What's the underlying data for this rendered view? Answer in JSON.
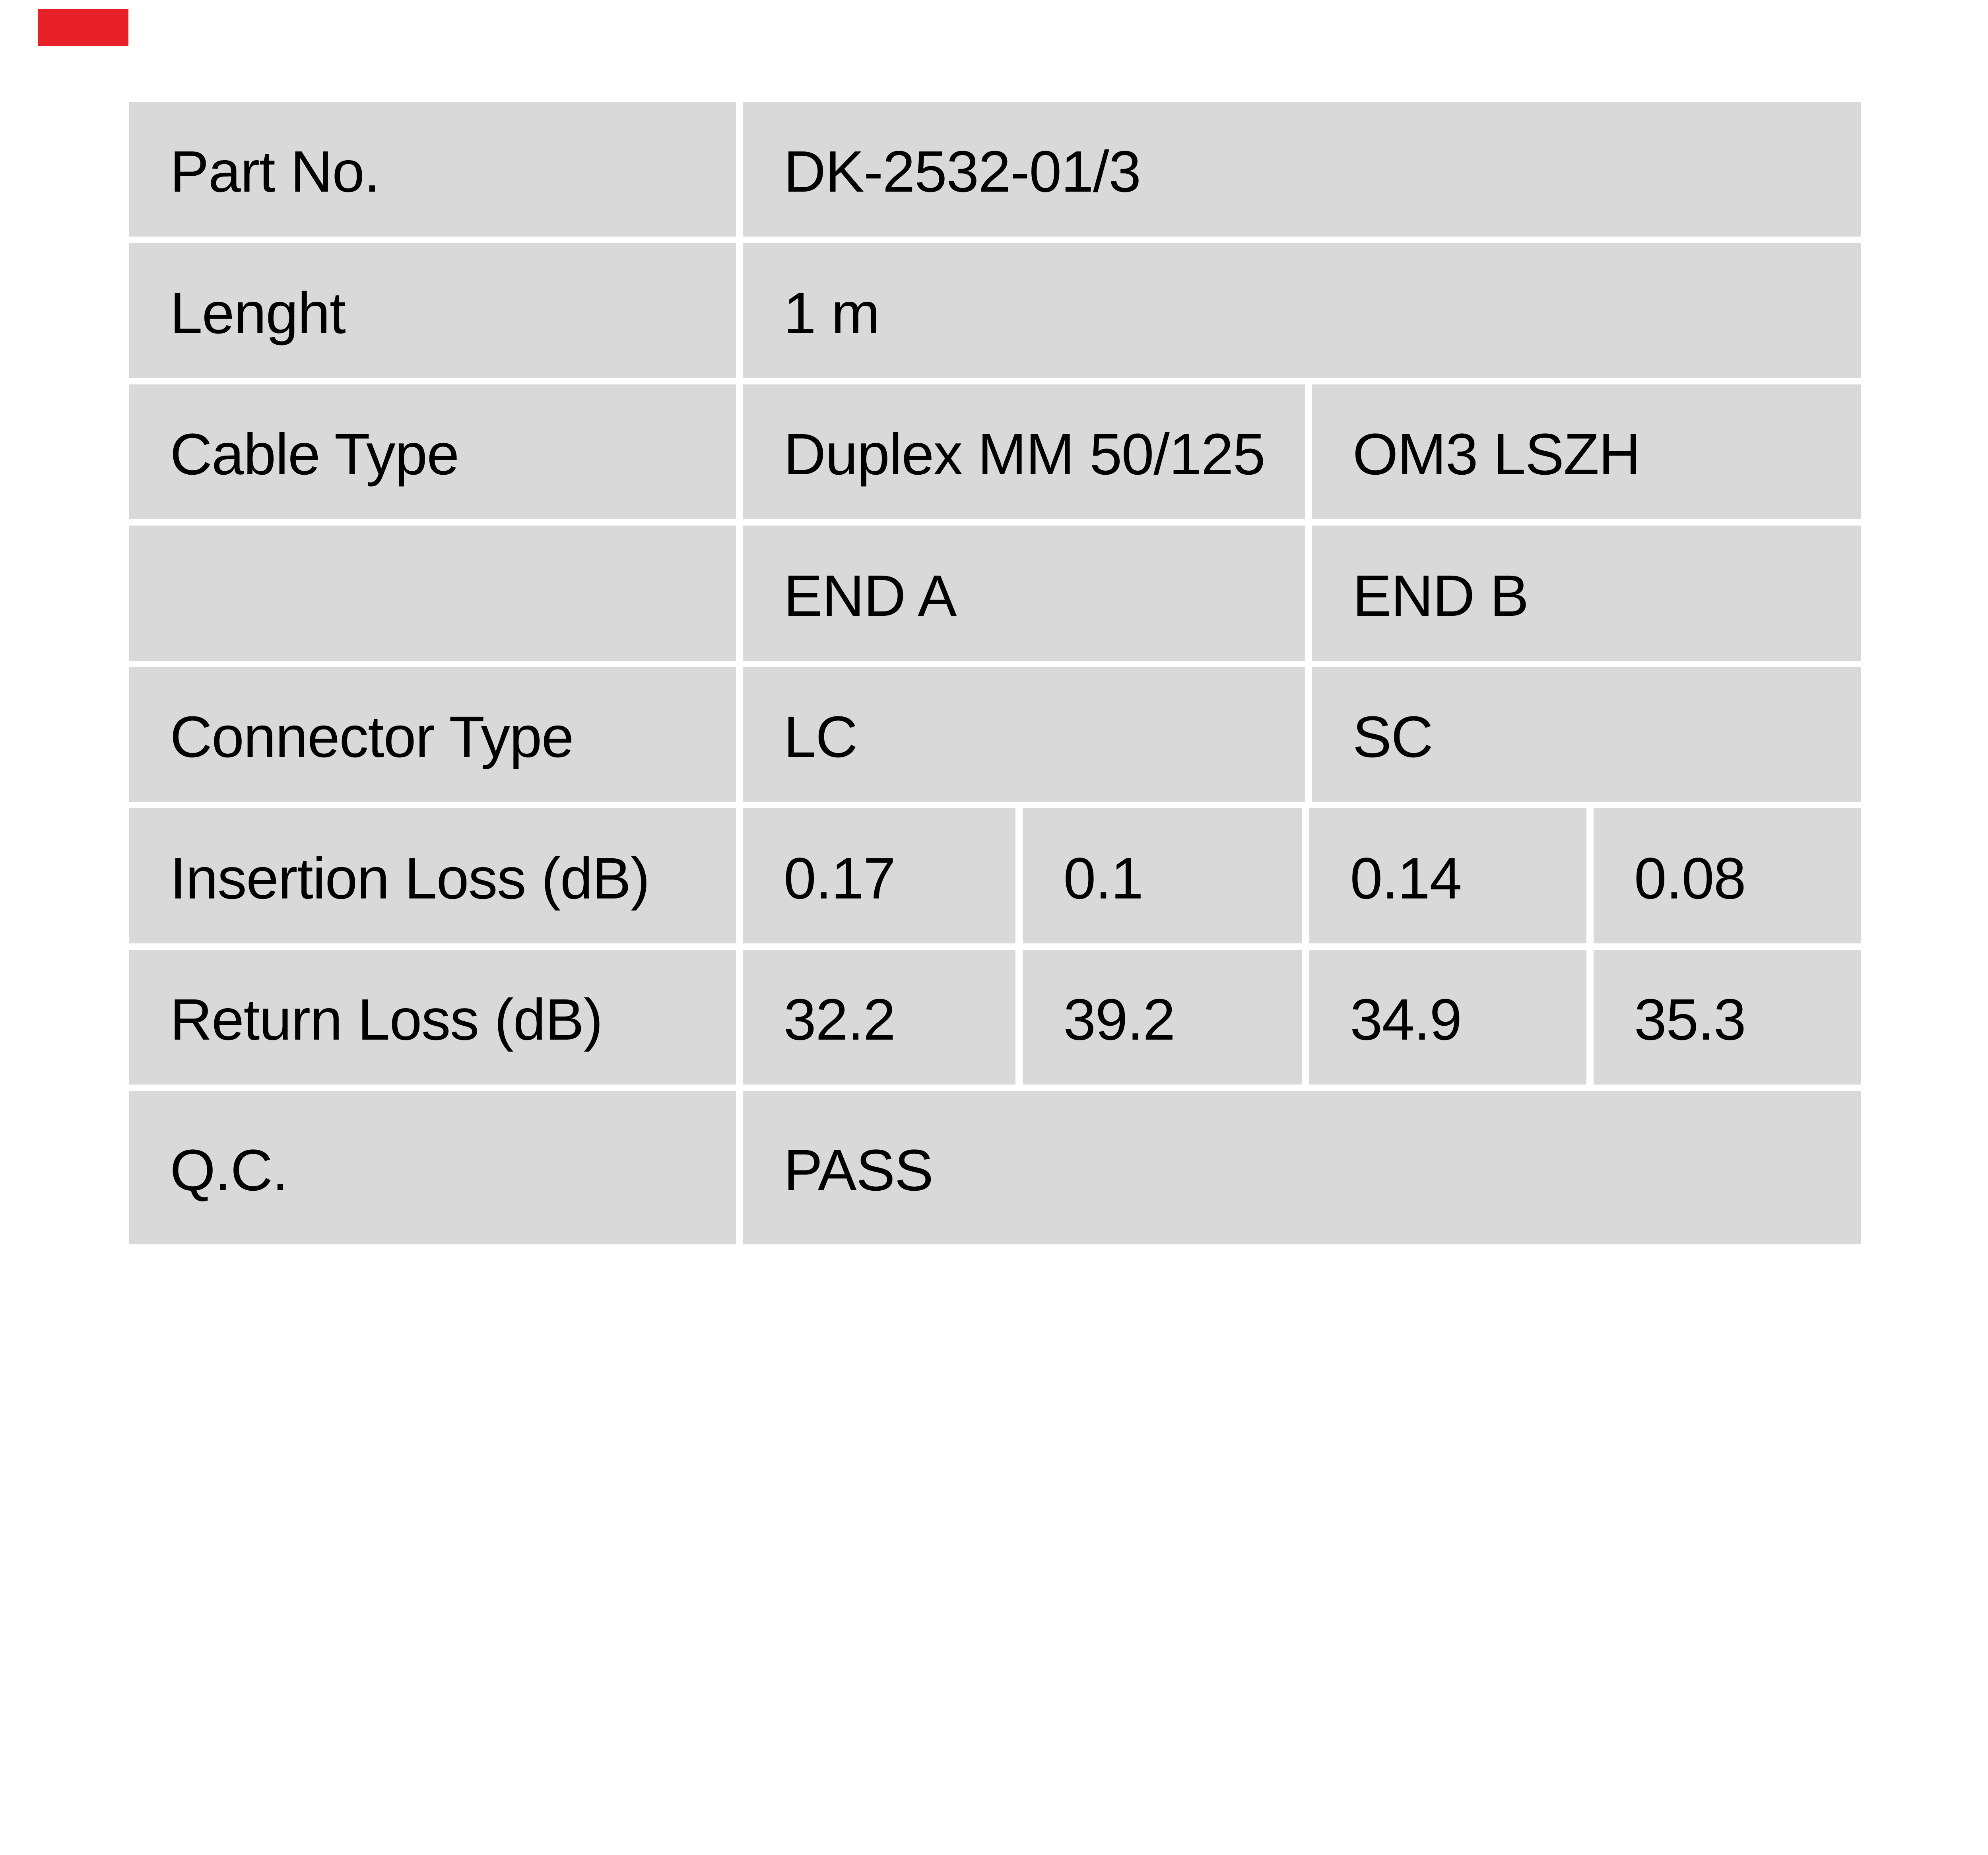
{
  "colors": {
    "cell_fill": "#d9d9d9",
    "background": "#ffffff",
    "text": "#000000",
    "marker_red": "#e82128"
  },
  "table": {
    "rows": [
      {
        "label": "Part No.",
        "values": [
          "DK-2532-01/3"
        ]
      },
      {
        "label": "Lenght",
        "values": [
          "1 m"
        ]
      },
      {
        "label": "Cable Type",
        "values": [
          "Duplex MM 50/125",
          "OM3 LSZH"
        ]
      },
      {
        "label": "",
        "values": [
          "END A",
          "END B"
        ]
      },
      {
        "label": "Connector Type",
        "values": [
          "LC",
          "SC"
        ]
      },
      {
        "label": "Insertion Loss (dB)",
        "values": [
          "0.17",
          "0.1",
          "0.14",
          "0.08"
        ]
      },
      {
        "label": "Return Loss (dB)",
        "values": [
          "32.2",
          "39.2",
          "34.9",
          "35.3"
        ]
      },
      {
        "label": "Q.C.",
        "values": [
          "PASS"
        ]
      }
    ]
  }
}
